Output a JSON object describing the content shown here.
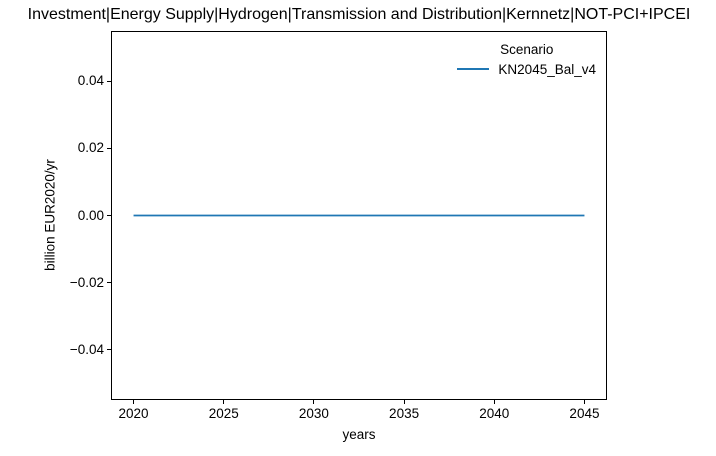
{
  "figure": {
    "background": "#ffffff",
    "axes_edge_color": "#000000",
    "text_color": "#000000"
  },
  "chart_data": {
    "type": "line",
    "title": "Investment|Energy Supply|Hydrogen|Transmission and Distribution|Kernnetz|NOT-PCI+IPCEI",
    "xlabel": "years",
    "ylabel": "billion EUR2020/yr",
    "xlim": [
      2018.75,
      2046.25
    ],
    "ylim": [
      -0.055,
      0.055
    ],
    "x_ticks": [
      2020,
      2025,
      2030,
      2035,
      2040,
      2045
    ],
    "x_tick_labels": [
      "2020",
      "2025",
      "2030",
      "2035",
      "2040",
      "2045"
    ],
    "y_ticks": [
      0.04,
      0.02,
      0.0,
      -0.02,
      -0.04
    ],
    "y_tick_labels": [
      "0.04",
      "0.02",
      "0.00",
      "−0.02",
      "−0.04"
    ],
    "grid": false,
    "legend": {
      "title": "Scenario",
      "position": "upper right",
      "entries": [
        {
          "label": "KN2045_Bal_v4",
          "color": "#1f77b4"
        }
      ]
    },
    "series": [
      {
        "name": "KN2045_Bal_v4",
        "color": "#1f77b4",
        "x": [
          2020,
          2025,
          2030,
          2035,
          2040,
          2045
        ],
        "values": [
          0,
          0,
          0,
          0,
          0,
          0
        ]
      }
    ]
  }
}
